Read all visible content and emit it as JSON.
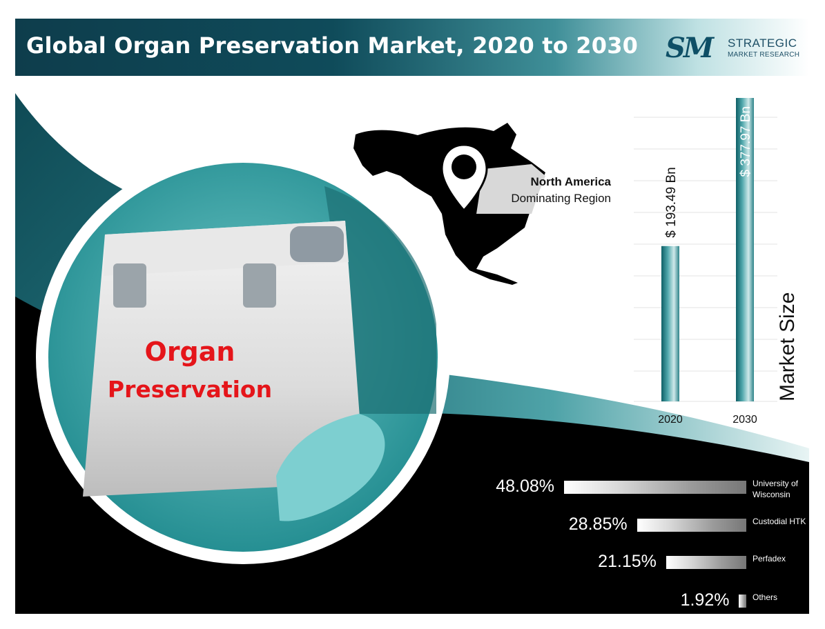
{
  "header": {
    "title": "Global Organ Preservation Market, 2020 to 2030",
    "logo_mark": "SM",
    "logo_line1": "STRATEGIC",
    "logo_line2": "MARKET RESEARCH"
  },
  "photo": {
    "line1": "Organ",
    "line2": "Preservation"
  },
  "region": {
    "line1": "North America",
    "line2": "Dominating Region"
  },
  "colors": {
    "header_dark": "#0e3d4c",
    "teal": "#2f8a92",
    "accent_red": "#e5151a",
    "background_black": "#000000"
  },
  "chart_data": [
    {
      "type": "bar",
      "categories": [
        "2020",
        "2030"
      ],
      "values": [
        193.49,
        377.97
      ],
      "value_labels": [
        "$ 193.49 Bn",
        "$ 377.97 Bn"
      ],
      "ylabel": "Market Size",
      "grid": true
    },
    {
      "type": "bar",
      "orientation": "horizontal",
      "categories": [
        "University of Wisconsin",
        "Custodial HTK",
        "Perfadex",
        "Others"
      ],
      "values": [
        48.08,
        28.85,
        21.15,
        1.92
      ],
      "value_labels": [
        "48.08%",
        "28.85%",
        "21.15%",
        "1.92%"
      ]
    }
  ]
}
